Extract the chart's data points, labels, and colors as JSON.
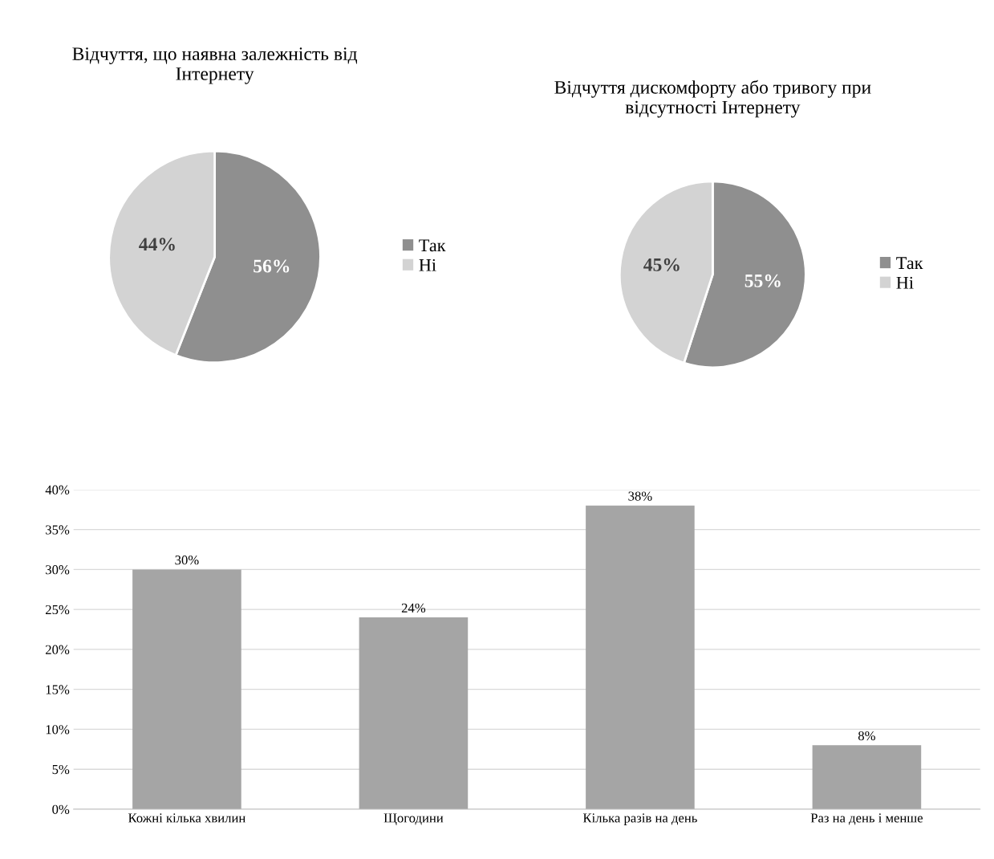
{
  "chart_data": [
    {
      "type": "pie",
      "title": "Відчуття, що наявна залежність від Інтернету",
      "categories": [
        "Так",
        "Ні"
      ],
      "values": [
        56,
        44
      ],
      "colors": [
        "#8f8f8f",
        "#d3d3d3"
      ],
      "value_labels": [
        "56%",
        "44%"
      ],
      "legend": "right"
    },
    {
      "type": "pie",
      "title": "Відчуття дискомфорту або тривогу при відсутності Інтернету",
      "categories": [
        "Так",
        "Ні"
      ],
      "values": [
        55,
        45
      ],
      "colors": [
        "#8f8f8f",
        "#d3d3d3"
      ],
      "value_labels": [
        "55%",
        "45%"
      ],
      "legend": "right"
    },
    {
      "type": "bar",
      "categories": [
        "Кожні кілька хвилин",
        "Щогодини",
        "Кілька разів на день",
        "Раз на день і менше"
      ],
      "values": [
        30,
        24,
        38,
        8
      ],
      "color": "#a5a5a5",
      "value_labels": [
        "30%",
        "24%",
        "38%",
        "8%"
      ],
      "ylim": [
        0,
        40
      ],
      "yticks": [
        {
          "value": 0,
          "label": "0%"
        },
        {
          "value": 5,
          "label": "5%"
        },
        {
          "value": 10,
          "label": "10%"
        },
        {
          "value": 15,
          "label": "15%"
        },
        {
          "value": 20,
          "label": "20%"
        },
        {
          "value": 25,
          "label": "25%"
        },
        {
          "value": 30,
          "label": "30%"
        },
        {
          "value": 35,
          "label": "35%"
        },
        {
          "value": 40,
          "label": "40%"
        }
      ],
      "grid": "y",
      "legend": false
    }
  ]
}
